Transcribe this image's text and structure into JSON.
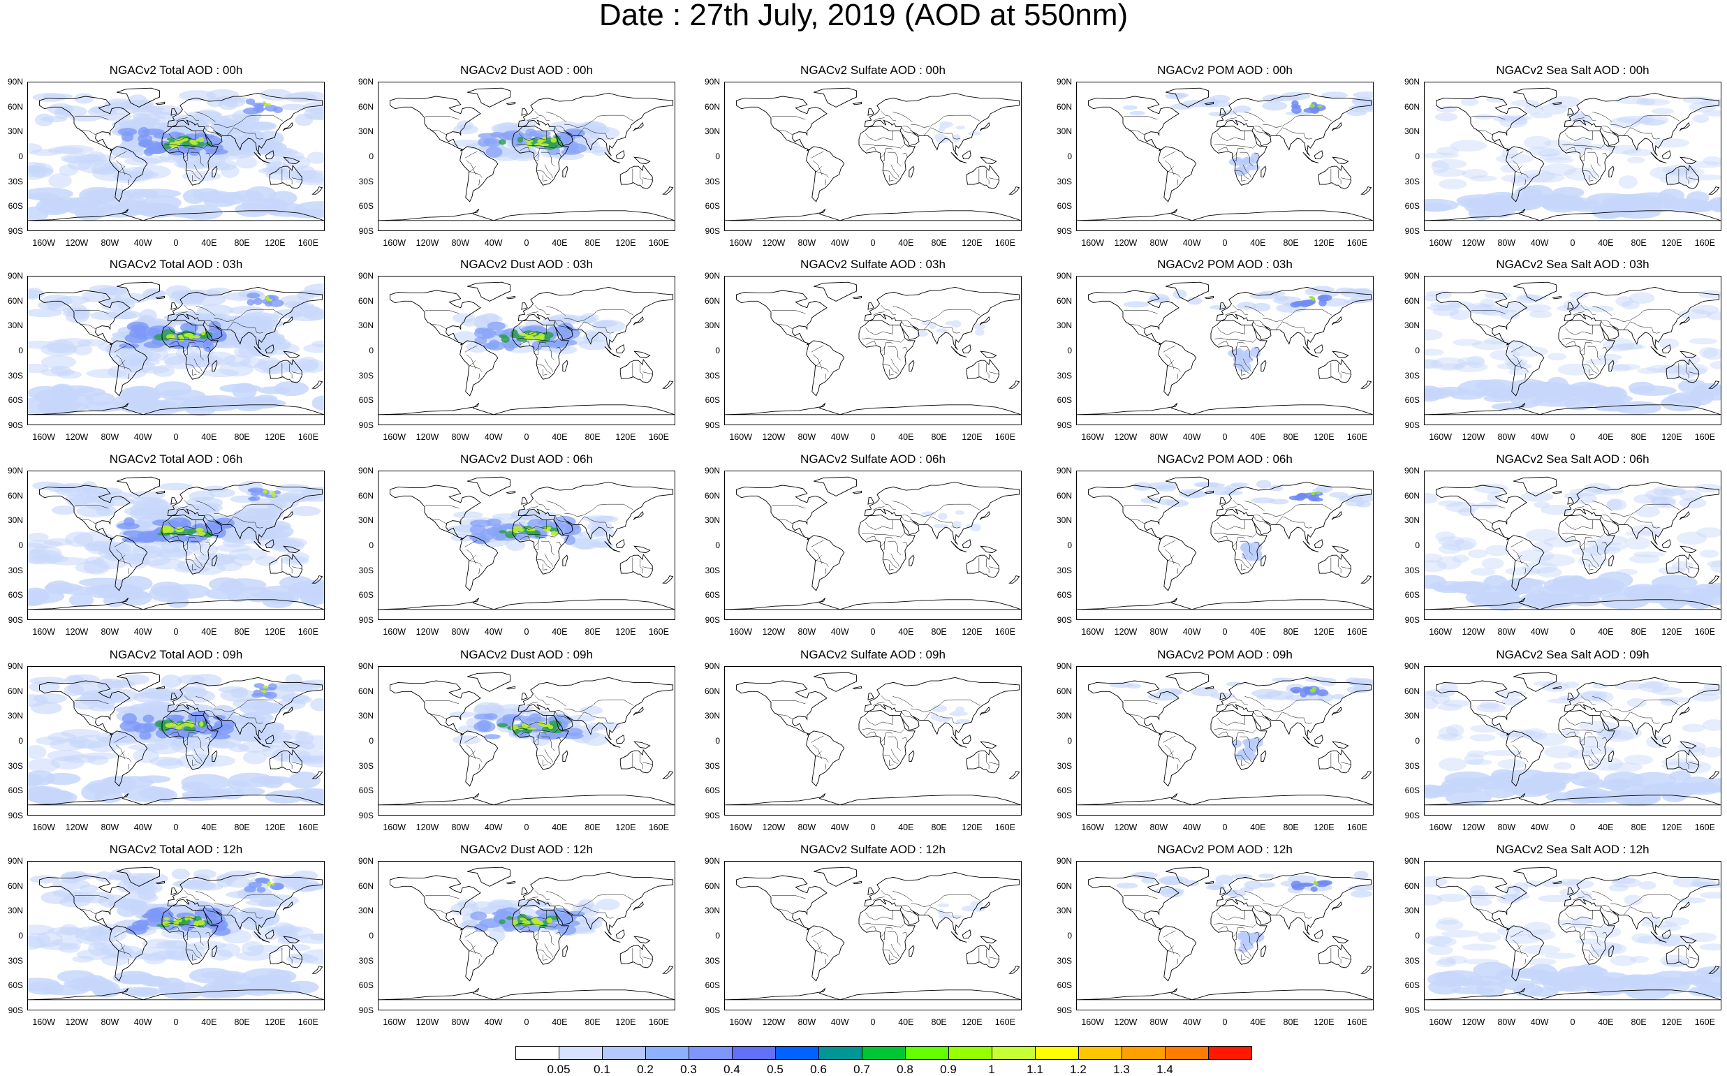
{
  "title": "Date : 27th July, 2019 (AOD at 550nm)",
  "panels": [
    [
      "NGACv2 Total AOD : 00h",
      "NGACv2 Dust AOD : 00h",
      "NGACv2 Sulfate AOD : 00h",
      "NGACv2 POM AOD : 00h",
      "NGACv2 Sea Salt AOD : 00h"
    ],
    [
      "NGACv2 Total AOD : 03h",
      "NGACv2 Dust AOD : 03h",
      "NGACv2 Sulfate AOD : 03h",
      "NGACv2 POM AOD : 03h",
      "NGACv2 Sea Salt AOD : 03h"
    ],
    [
      "NGACv2 Total AOD : 06h",
      "NGACv2 Dust AOD : 06h",
      "NGACv2 Sulfate AOD : 06h",
      "NGACv2 POM AOD : 06h",
      "NGACv2 Sea Salt AOD : 06h"
    ],
    [
      "NGACv2 Total AOD : 09h",
      "NGACv2 Dust AOD : 09h",
      "NGACv2 Sulfate AOD : 09h",
      "NGACv2 POM AOD : 09h",
      "NGACv2 Sea Salt  AOD : 09h"
    ],
    [
      "NGACv2 Total AOD : 12h",
      "NGACv2 Dust AOD : 12h",
      "NGACv2 Sulfate AOD : 12h",
      "NGACv2 POM  AOD : 12h",
      "NGACv2 Sea Salt AOD : 12h"
    ]
  ],
  "lat_labels": [
    "90N",
    "60N",
    "30N",
    "0",
    "30S",
    "60S",
    "90S"
  ],
  "lon_labels": [
    "160W",
    "120W",
    "80W",
    "40W",
    "0",
    "40E",
    "80E",
    "120E",
    "160E"
  ],
  "colorbar": {
    "labels": [
      "0.05",
      "0.1",
      "0.2",
      "0.3",
      "0.4",
      "0.5",
      "0.6",
      "0.7",
      "0.8",
      "0.9",
      "1",
      "1.1",
      "1.2",
      "1.3",
      "1.4"
    ],
    "colors": [
      "#ffffff",
      "#d6e2ff",
      "#b5c9ff",
      "#8eb2ff",
      "#7f96ff",
      "#6370f8",
      "#0063ff",
      "#009696",
      "#00c633",
      "#63ff00",
      "#96ff00",
      "#c6ff33",
      "#ffff00",
      "#ffc600",
      "#ffa000",
      "#ff7c00",
      "#ff1900"
    ]
  },
  "fields": {
    "total": {
      "band": "#c7d7fb",
      "plume": "#7d99f7",
      "core": "#2e9f55",
      "hot": "#b9ee2b"
    },
    "dust": {
      "plume": "#8aa5f7",
      "core": "#2e9f55",
      "hot": "#b9ee2b"
    },
    "sulfate": {
      "band": "#dce6fd"
    },
    "pom": {
      "plume": "#b9cbfc",
      "core": "#6f8af3",
      "hot": "#96e33a"
    },
    "seasalt": {
      "band": "#c7d7fb"
    }
  }
}
